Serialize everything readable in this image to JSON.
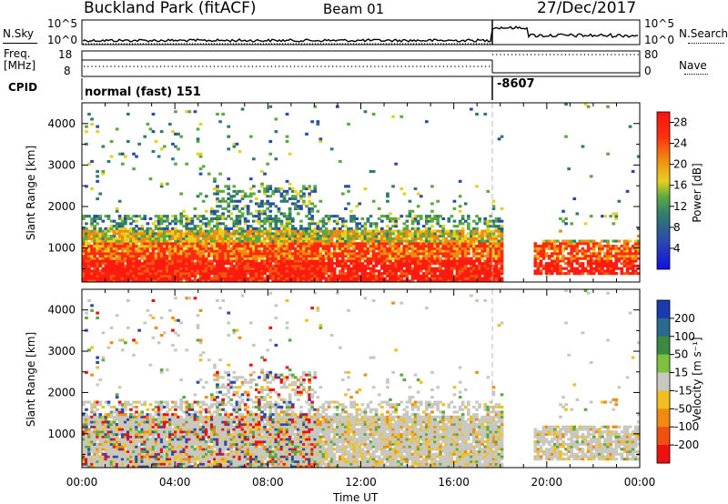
{
  "header": {
    "station": "Buckland Park (fitACF)",
    "beam": "Beam 01",
    "date": "27/Dec/2017"
  },
  "noise_panel": {
    "left_label": "N.Sky",
    "right_label": "N.Search",
    "ticks_left": [
      "10^5",
      "10^0"
    ],
    "ticks_right": [
      "10^5",
      "10^0"
    ]
  },
  "freq_panel": {
    "left_label": "Freq.",
    "left_unit": "[MHz]",
    "ticks_left": [
      "18",
      "8"
    ],
    "right_label": "Nave",
    "ticks_right": [
      "80",
      "0"
    ]
  },
  "cpid_panel": {
    "label": "CPID",
    "mode_1": "normal (fast) 151",
    "mode_2": "-8607"
  },
  "chart_data": [
    {
      "type": "heatmap",
      "name": "power",
      "xlabel": "Time UT",
      "ylabel": "Slant Range [km]",
      "x_ticks": [
        "00:00",
        "04:00",
        "08:00",
        "12:00",
        "16:00",
        "20:00",
        "00:00"
      ],
      "xlim_hours": [
        0,
        24
      ],
      "ylim": [
        180,
        4500
      ],
      "y_ticks": [
        1000,
        2000,
        3000,
        4000
      ],
      "colorbar_label": "Power [dB]",
      "colorbar_ticks": [
        4,
        8,
        12,
        16,
        20,
        24,
        28
      ],
      "colorbar_range": [
        0,
        30
      ],
      "colors": [
        "#1010e0",
        "#2a4ab0",
        "#307a70",
        "#5aaa40",
        "#e6d020",
        "#f08a10",
        "#ff2010"
      ],
      "gap_marker_hour": 18.0
    },
    {
      "type": "heatmap",
      "name": "velocity",
      "xlabel": "Time UT",
      "ylabel": "Slant Range [km]",
      "x_ticks": [
        "00:00",
        "04:00",
        "08:00",
        "12:00",
        "16:00",
        "20:00",
        "00:00"
      ],
      "xlim_hours": [
        0,
        24
      ],
      "ylim": [
        180,
        4500
      ],
      "y_ticks": [
        1000,
        2000,
        3000,
        4000
      ],
      "colorbar_label": "Velocity [m s⁻¹]",
      "colorbar_ticks": [
        200,
        100,
        50,
        15,
        -15,
        -50,
        -100,
        -200
      ],
      "colorbar_colors": [
        "#1a3ab0",
        "#2a6a90",
        "#3a8a40",
        "#80c040",
        "#c8c8c0",
        "#f0c020",
        "#f08a10",
        "#f05010",
        "#ee1010"
      ],
      "gap_marker_hour": 18.0
    }
  ]
}
